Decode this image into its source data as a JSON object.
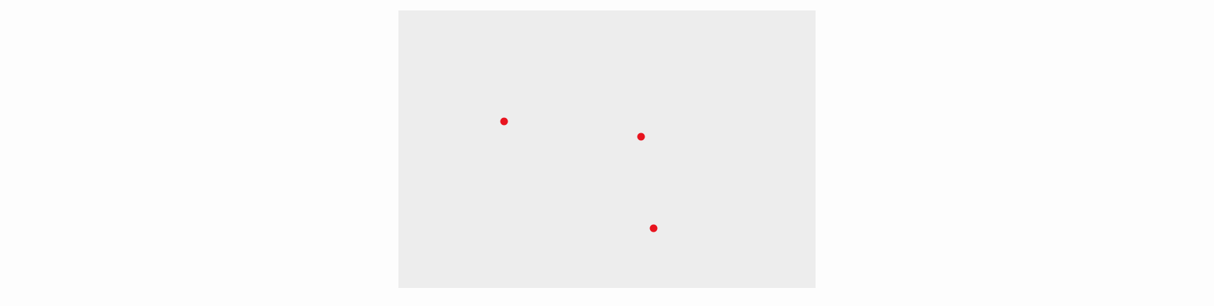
{
  "canvas": {
    "background_color": "#ededed"
  },
  "markers": [
    {
      "color": "#e8141f"
    },
    {
      "color": "#e8141f"
    },
    {
      "color": "#e8141f"
    }
  ]
}
